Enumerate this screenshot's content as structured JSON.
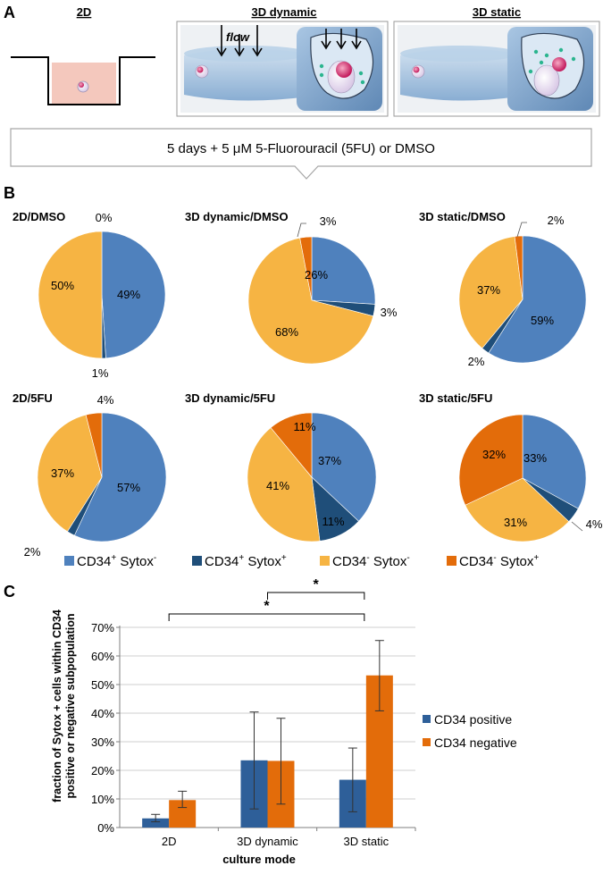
{
  "panel_labels": {
    "a": "A",
    "b": "B",
    "c": "C"
  },
  "panel_a": {
    "titles": {
      "twod": "2D",
      "dynamic": "3D dynamic",
      "static": "3D static"
    },
    "flow_label": "flow",
    "treatment": "5 days + 5 μM 5-Fluorouracil (5FU) or DMSO"
  },
  "colors": {
    "cd34pos_sytoxneg": "#4F81BD",
    "cd34pos_sytoxpos": "#1F4E79",
    "cd34neg_sytoxneg": "#F6B443",
    "cd34neg_sytoxpos": "#E36C0A",
    "bar_pos": "#2E5F99",
    "bar_neg": "#E36C0A"
  },
  "legend_b": [
    {
      "main": "CD34",
      "sup1": "+",
      "mid": " Sytox",
      "sup2": "-",
      "color": "#4F81BD"
    },
    {
      "main": "CD34",
      "sup1": "+",
      "mid": " Sytox",
      "sup2": "+",
      "color": "#1F4E79"
    },
    {
      "main": "CD34",
      "sup1": "-",
      "mid": " Sytox",
      "sup2": "-",
      "color": "#F6B443"
    },
    {
      "main": "CD34",
      "sup1": "-",
      "mid": " Sytox",
      "sup2": "+",
      "color": "#E36C0A"
    }
  ],
  "chart_data": [
    {
      "type": "pie",
      "title": "2D/DMSO",
      "categories": [
        "CD34+ Sytox-",
        "CD34+ Sytox+",
        "CD34- Sytox-",
        "CD34- Sytox+"
      ],
      "values": [
        49,
        1,
        50,
        0
      ],
      "labels": [
        "49%",
        "1%",
        "50%",
        "0%"
      ]
    },
    {
      "type": "pie",
      "title": "3D dynamic/DMSO",
      "categories": [
        "CD34+ Sytox-",
        "CD34+ Sytox+",
        "CD34- Sytox-",
        "CD34- Sytox+"
      ],
      "values": [
        26,
        3,
        68,
        3
      ],
      "labels": [
        "26%",
        "3%",
        "68%",
        "3%"
      ]
    },
    {
      "type": "pie",
      "title": "3D static/DMSO",
      "categories": [
        "CD34+ Sytox-",
        "CD34+ Sytox+",
        "CD34- Sytox-",
        "CD34- Sytox+"
      ],
      "values": [
        59,
        2,
        37,
        2
      ],
      "labels": [
        "59%",
        "2%",
        "37%",
        "2%"
      ]
    },
    {
      "type": "pie",
      "title": "2D/5FU",
      "categories": [
        "CD34+ Sytox-",
        "CD34+ Sytox+",
        "CD34- Sytox-",
        "CD34- Sytox+"
      ],
      "values": [
        57,
        2,
        37,
        4
      ],
      "labels": [
        "57%",
        "2%",
        "37%",
        "4%"
      ]
    },
    {
      "type": "pie",
      "title": "3D dynamic/5FU",
      "categories": [
        "CD34+ Sytox-",
        "CD34+ Sytox+",
        "CD34- Sytox-",
        "CD34- Sytox+"
      ],
      "values": [
        37,
        11,
        41,
        11
      ],
      "labels": [
        "37%",
        "11%",
        "41%",
        "11%"
      ]
    },
    {
      "type": "pie",
      "title": "3D static/5FU",
      "categories": [
        "CD34+ Sytox-",
        "CD34+ Sytox+",
        "CD34- Sytox-",
        "CD34- Sytox+"
      ],
      "values": [
        33,
        4,
        31,
        32
      ],
      "labels": [
        "33%",
        "4%",
        "31%",
        "32%"
      ]
    },
    {
      "type": "bar",
      "categories": [
        "2D",
        "3D dynamic",
        "3D static"
      ],
      "series": [
        {
          "name": "CD34 positive",
          "values": [
            3.2,
            23.5,
            16.7
          ],
          "err_low": [
            2.0,
            6.5,
            5.5
          ],
          "err_high": [
            4.6,
            40.4,
            27.8
          ]
        },
        {
          "name": "CD34 negative",
          "values": [
            9.6,
            23.3,
            53.2
          ],
          "err_low": [
            7.0,
            8.2,
            40.8
          ],
          "err_high": [
            12.7,
            38.2,
            65.4
          ]
        }
      ],
      "ylim": [
        0,
        70
      ],
      "yticks": [
        "0%",
        "10%",
        "20%",
        "30%",
        "40%",
        "50%",
        "60%",
        "70%"
      ],
      "xlabel": "culture mode",
      "ylabel_line1": "fraction of Sytox + cells within CD34",
      "ylabel_line2": "positive or negative subpopulation",
      "significance": [
        "*",
        "*"
      ]
    }
  ]
}
